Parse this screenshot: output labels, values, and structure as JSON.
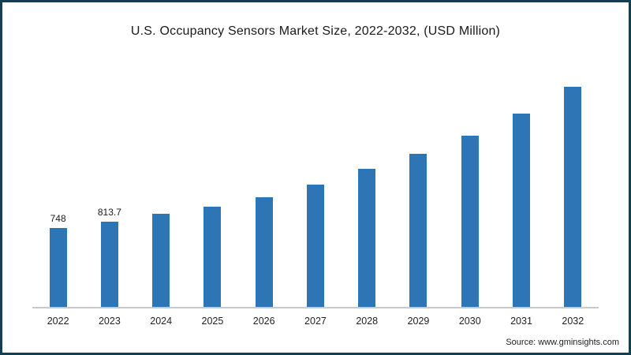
{
  "chart_data": {
    "type": "bar",
    "title": "U.S. Occupancy Sensors Market Size, 2022-2032, (USD Million)",
    "categories": [
      "2022",
      "2023",
      "2024",
      "2025",
      "2026",
      "2027",
      "2028",
      "2029",
      "2030",
      "2031",
      "2032"
    ],
    "values": [
      748,
      813.7,
      885,
      955,
      1045,
      1165,
      1310,
      1455,
      1630,
      1840,
      2090
    ],
    "point_labels": [
      "748",
      "813.7",
      "",
      "",
      "",
      "",
      "",
      "",
      "",
      "",
      ""
    ],
    "xlabel": "",
    "ylabel": "",
    "ylim": [
      0,
      2100
    ],
    "grid": false,
    "legend_position": "none"
  },
  "source": {
    "text": "Source: www.gminsights.com"
  },
  "colors": {
    "bar": "#2e75b6",
    "frame_border": "#123f52",
    "axis_line": "#c9c9c9"
  }
}
